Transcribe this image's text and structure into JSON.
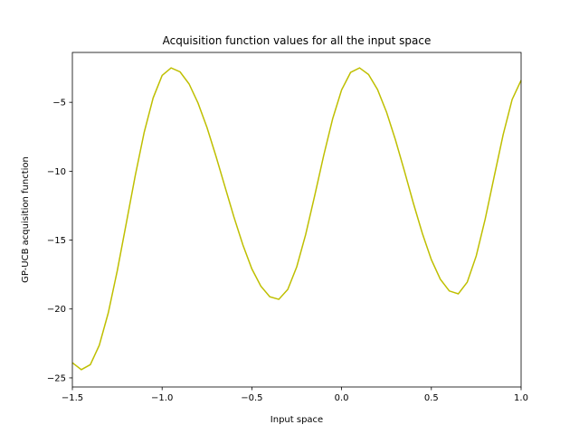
{
  "chart_data": {
    "type": "line",
    "title": "Acquisition function values for all the input space",
    "xlabel": "Input space",
    "ylabel": "GP-UCB acquisition function",
    "color": "#bfbf00",
    "x": [
      -1.5,
      -1.45,
      -1.4,
      -1.35,
      -1.3,
      -1.25,
      -1.2,
      -1.15,
      -1.1,
      -1.05,
      -1.0,
      -0.95,
      -0.9,
      -0.85,
      -0.8,
      -0.75,
      -0.7,
      -0.65,
      -0.6,
      -0.55,
      -0.5,
      -0.45,
      -0.4,
      -0.35,
      -0.3,
      -0.25,
      -0.2,
      -0.15,
      -0.1,
      -0.05,
      0.0,
      0.05,
      0.1,
      0.15,
      0.2,
      0.25,
      0.3,
      0.35,
      0.4,
      0.45,
      0.5,
      0.55,
      0.6,
      0.65,
      0.7,
      0.75,
      0.8,
      0.85,
      0.9,
      0.95,
      1.0
    ],
    "values": [
      -23.9,
      -24.4,
      -24.04,
      -22.63,
      -20.28,
      -17.23,
      -13.8,
      -10.34,
      -7.18,
      -4.68,
      -3.05,
      -2.5,
      -2.79,
      -3.66,
      -5.05,
      -6.83,
      -8.91,
      -11.12,
      -13.32,
      -15.35,
      -17.09,
      -18.34,
      -19.11,
      -19.3,
      -18.58,
      -16.94,
      -14.58,
      -11.78,
      -8.87,
      -6.2,
      -4.1,
      -2.83,
      -2.5,
      -2.98,
      -4.07,
      -5.7,
      -7.73,
      -9.99,
      -12.33,
      -14.52,
      -16.42,
      -17.84,
      -18.69,
      -18.9,
      -18.05,
      -16.15,
      -13.47,
      -10.39,
      -7.35,
      -4.8,
      -3.4
    ],
    "xlim": [
      -1.5,
      1.0
    ],
    "ylim": [
      -25.66,
      -1.38
    ],
    "xticks": [
      {
        "value": -1.5,
        "label": "−1.5"
      },
      {
        "value": -1.0,
        "label": "−1.0"
      },
      {
        "value": -0.5,
        "label": "−0.5"
      },
      {
        "value": 0.0,
        "label": "0.0"
      },
      {
        "value": 0.5,
        "label": "0.5"
      },
      {
        "value": 1.0,
        "label": "1.0"
      }
    ],
    "yticks": [
      {
        "value": -25,
        "label": "−25"
      },
      {
        "value": -20,
        "label": "−20"
      },
      {
        "value": -15,
        "label": "−15"
      },
      {
        "value": -10,
        "label": "−10"
      },
      {
        "value": -5,
        "label": "−5"
      }
    ]
  }
}
